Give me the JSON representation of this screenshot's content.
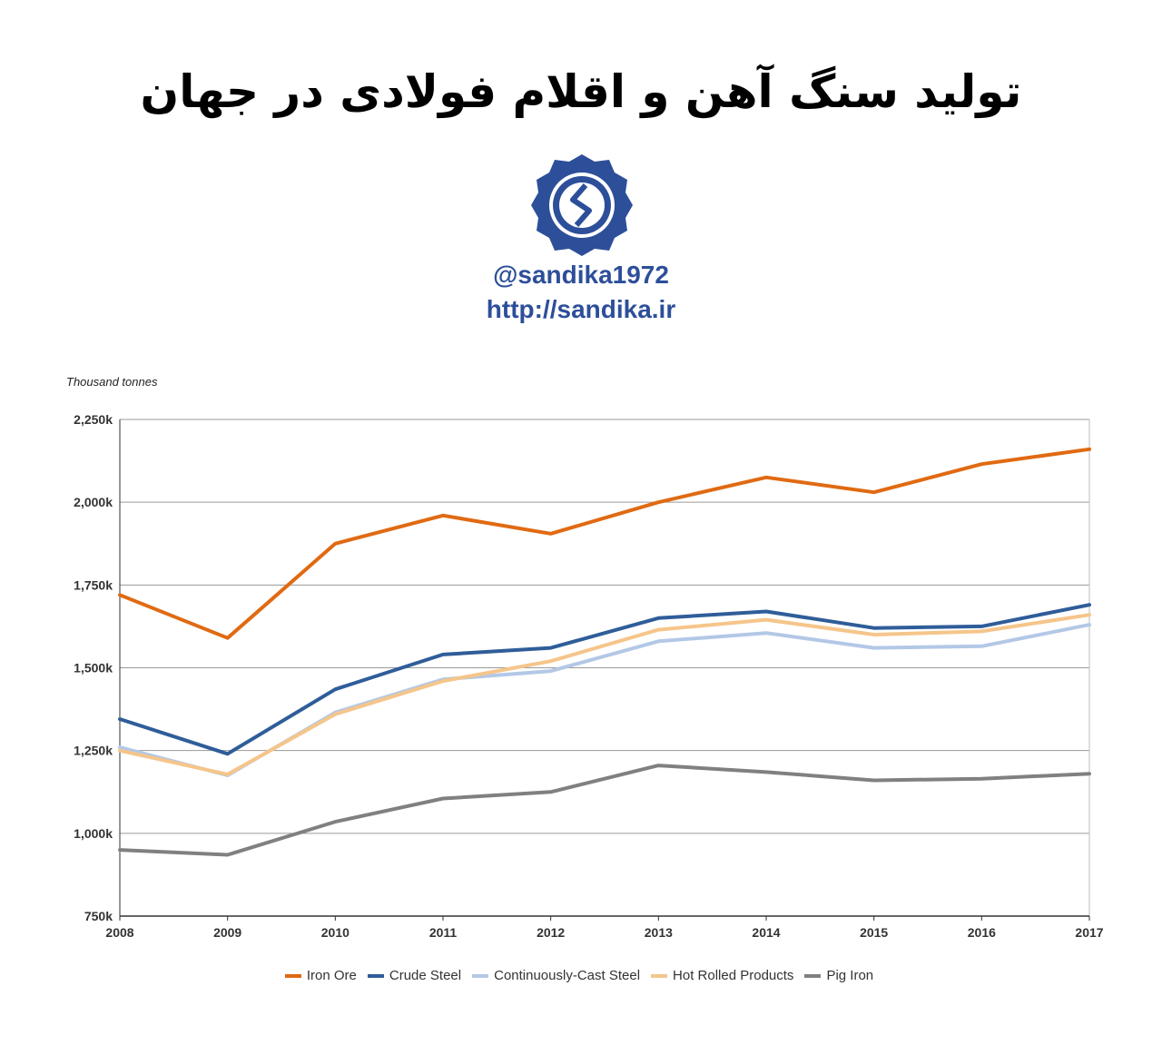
{
  "header": {
    "title": "تولید سنگ آهن و اقلام فولادی در جهان",
    "handle": "@sandika1972",
    "url": "http://sandika.ir"
  },
  "colors": {
    "iron_ore": "#e06a12",
    "crude_steel": "#2f5d99",
    "cc_steel": "#b3c8e6",
    "hot_rolled": "#f5c58a",
    "pig_iron": "#808080",
    "brand": "#2d4f9a"
  },
  "chart_data": {
    "type": "line",
    "ylabel": "Thousand tonnes",
    "xlabel": "",
    "x": [
      "2008",
      "2009",
      "2010",
      "2011",
      "2012",
      "2013",
      "2014",
      "2015",
      "2016",
      "2017"
    ],
    "ylim": [
      750,
      2250
    ],
    "yticks": [
      750,
      1000,
      1250,
      1500,
      1750,
      2000,
      2250
    ],
    "ytick_labels": [
      "750k",
      "1,000k",
      "1,250k",
      "1,500k",
      "1,750k",
      "2,000k",
      "2,250k"
    ],
    "grid": true,
    "legend_position": "bottom",
    "series": [
      {
        "name": "Iron Ore",
        "color": "#e06a12",
        "values": [
          1720,
          1590,
          1875,
          1960,
          1905,
          2000,
          2075,
          2030,
          2115,
          2160
        ]
      },
      {
        "name": "Crude Steel",
        "color": "#2f5d99",
        "values": [
          1345,
          1240,
          1435,
          1540,
          1560,
          1650,
          1670,
          1620,
          1625,
          1690
        ]
      },
      {
        "name": "Continuously-Cast Steel",
        "color": "#b3c8e6",
        "values": [
          1260,
          1175,
          1365,
          1465,
          1490,
          1580,
          1605,
          1560,
          1565,
          1630
        ]
      },
      {
        "name": "Hot Rolled Products",
        "color": "#f5c58a",
        "values": [
          1250,
          1178,
          1360,
          1460,
          1520,
          1615,
          1645,
          1600,
          1610,
          1660
        ]
      },
      {
        "name": "Pig Iron",
        "color": "#808080",
        "values": [
          950,
          935,
          1035,
          1105,
          1125,
          1205,
          1185,
          1160,
          1165,
          1180
        ]
      }
    ]
  }
}
